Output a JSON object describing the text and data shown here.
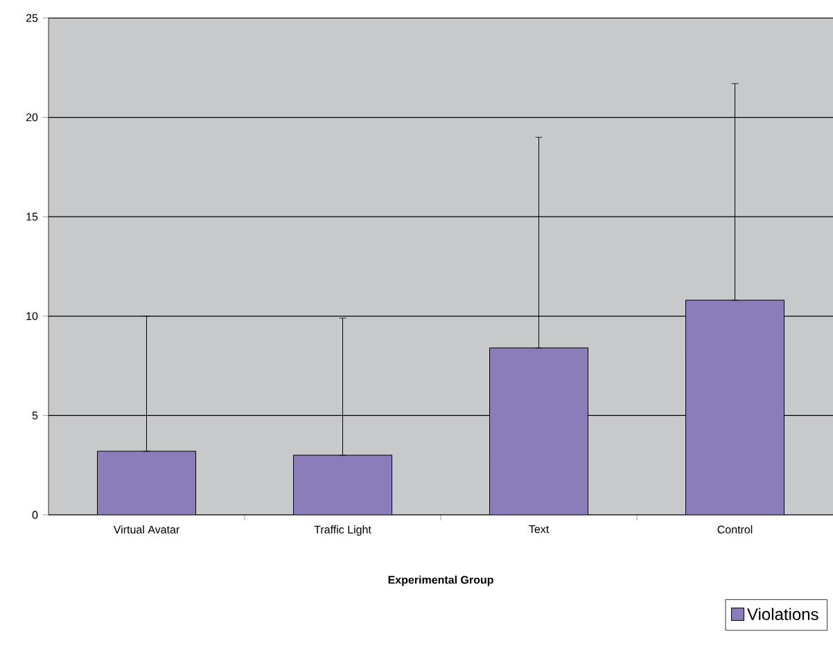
{
  "chart_data": {
    "type": "bar",
    "xlabel": "Experimental Group",
    "categories": [
      "Virtual Avatar",
      "Traffic Light",
      "Text",
      "Control"
    ],
    "series": [
      {
        "name": "Violations",
        "color": "#8b7dba",
        "values": [
          3.2,
          3.0,
          8.4,
          10.8
        ],
        "errors": [
          [
            3.2,
            10.0
          ],
          [
            3.0,
            9.9
          ],
          [
            8.4,
            19.0
          ],
          [
            10.8,
            21.7
          ]
        ]
      }
    ],
    "ylim": [
      0,
      25
    ],
    "yticks": [
      0,
      5,
      10,
      15,
      20,
      25
    ],
    "grid": "y",
    "legend": "bottom right"
  }
}
